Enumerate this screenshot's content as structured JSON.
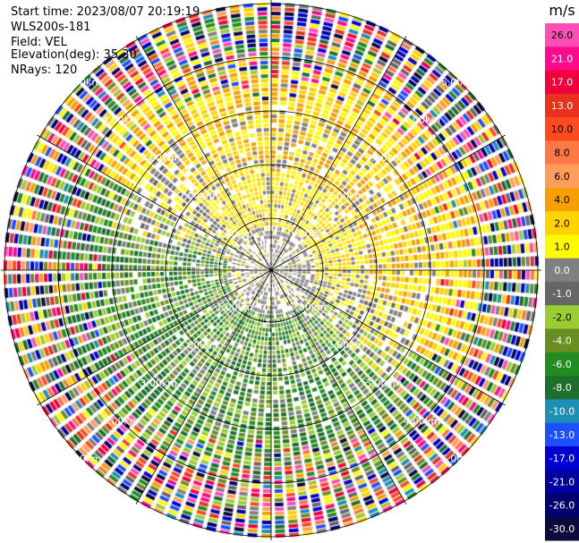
{
  "header": {
    "start_time": "Start time: 2023/08/07 20:19:19",
    "instrument": "WLS200s-181",
    "field": "Field: VEL",
    "elevation": "Elevation(deg): 35.30",
    "nrays": "NRays: 120"
  },
  "colorbar": {
    "unit": "m/s",
    "ticks": [
      "26.0",
      "21.0",
      "17.0",
      "13.0",
      "10.0",
      "8.0",
      "6.0",
      "4.0",
      "2.0",
      "1.0",
      "0.0",
      "-1.0",
      "-2.0",
      "-4.0",
      "-6.0",
      "-8.0",
      "-10.0",
      "-13.0",
      "-17.0",
      "-21.0",
      "-26.0",
      "-30.0"
    ],
    "colors": [
      "#ff4fb6",
      "#ff0a8c",
      "#f0003c",
      "#e8321e",
      "#ff4a20",
      "#ff7846",
      "#ff9e5a",
      "#f5a000",
      "#ffd200",
      "#fffa00",
      "#808080",
      "#666666",
      "#9acd32",
      "#6b8e23",
      "#228b22",
      "#1e6e2c",
      "#1e90b4",
      "#1e50ff",
      "#0000d2",
      "#0000a0",
      "#000070",
      "#0a0a3c"
    ]
  },
  "chart_data": {
    "type": "heatmap",
    "subtype": "PPI radial velocity scan",
    "field": "VEL",
    "unit": "m/s",
    "color_range": [
      -30.0,
      26.0
    ],
    "nrays": 120,
    "range_ring_labels": [
      "1.00km",
      "2.00km",
      "3.00km",
      "4.00km",
      "5.00km"
    ],
    "pattern": "Near-zero (gray) velocities near the center; positive (yellow/orange) toward the north and northeast; negative (green) toward the south and southwest; noisy multicolor returns in the outer ranges.",
    "grid": true
  }
}
